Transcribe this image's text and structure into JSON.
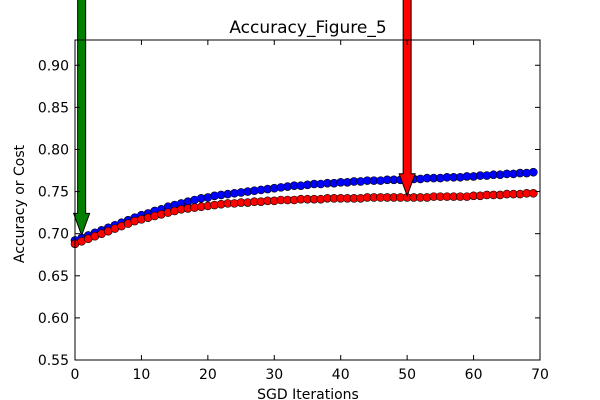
{
  "chart_data": {
    "type": "scatter",
    "title": "Accuracy_Figure_5",
    "xlabel": "SGD Iterations",
    "ylabel": "Accuracy or Cost",
    "xlim": [
      0,
      70
    ],
    "ylim": [
      0.55,
      0.93
    ],
    "xticks": [
      0,
      10,
      20,
      30,
      40,
      50,
      60,
      70
    ],
    "yticks": [
      0.55,
      0.6,
      0.65,
      0.7,
      0.75,
      0.8,
      0.85,
      0.9
    ],
    "xtick_labels": [
      "0",
      "10",
      "20",
      "30",
      "40",
      "50",
      "60",
      "70"
    ],
    "ytick_labels": [
      "0.55",
      "0.60",
      "0.65",
      "0.70",
      "0.75",
      "0.80",
      "0.85",
      "0.90"
    ],
    "grid": false,
    "legend": null,
    "x": [
      0,
      1,
      2,
      3,
      4,
      5,
      6,
      7,
      8,
      9,
      10,
      11,
      12,
      13,
      14,
      15,
      16,
      17,
      18,
      19,
      20,
      21,
      22,
      23,
      24,
      25,
      26,
      27,
      28,
      29,
      30,
      31,
      32,
      33,
      34,
      35,
      36,
      37,
      38,
      39,
      40,
      41,
      42,
      43,
      44,
      45,
      46,
      47,
      48,
      49,
      50,
      51,
      52,
      53,
      54,
      55,
      56,
      57,
      58,
      59,
      60,
      61,
      62,
      63,
      64,
      65,
      66,
      67,
      68,
      69
    ],
    "series": [
      {
        "color": "#0000ff",
        "values": [
          0.692,
          0.695,
          0.698,
          0.701,
          0.704,
          0.707,
          0.71,
          0.713,
          0.716,
          0.719,
          0.722,
          0.724,
          0.727,
          0.729,
          0.732,
          0.734,
          0.736,
          0.738,
          0.74,
          0.742,
          0.743,
          0.745,
          0.746,
          0.747,
          0.748,
          0.749,
          0.75,
          0.751,
          0.752,
          0.753,
          0.754,
          0.755,
          0.756,
          0.757,
          0.757,
          0.758,
          0.759,
          0.759,
          0.76,
          0.76,
          0.761,
          0.761,
          0.762,
          0.762,
          0.763,
          0.763,
          0.763,
          0.764,
          0.764,
          0.764,
          0.765,
          0.765,
          0.765,
          0.766,
          0.766,
          0.766,
          0.767,
          0.767,
          0.767,
          0.768,
          0.768,
          0.769,
          0.769,
          0.77,
          0.77,
          0.771,
          0.771,
          0.772,
          0.772,
          0.773
        ]
      },
      {
        "color": "#ff0000",
        "values": [
          0.688,
          0.691,
          0.694,
          0.697,
          0.7,
          0.703,
          0.706,
          0.709,
          0.712,
          0.715,
          0.717,
          0.719,
          0.721,
          0.723,
          0.725,
          0.727,
          0.729,
          0.73,
          0.731,
          0.732,
          0.733,
          0.734,
          0.735,
          0.736,
          0.736,
          0.737,
          0.737,
          0.738,
          0.738,
          0.739,
          0.739,
          0.74,
          0.74,
          0.74,
          0.741,
          0.741,
          0.741,
          0.741,
          0.742,
          0.742,
          0.742,
          0.742,
          0.742,
          0.742,
          0.743,
          0.743,
          0.743,
          0.743,
          0.743,
          0.743,
          0.743,
          0.743,
          0.743,
          0.743,
          0.744,
          0.744,
          0.744,
          0.744,
          0.744,
          0.744,
          0.745,
          0.745,
          0.746,
          0.746,
          0.746,
          0.747,
          0.747,
          0.747,
          0.748,
          0.748
        ]
      }
    ],
    "annotations": [
      {
        "type": "arrow",
        "color": "#008000",
        "x": 1,
        "y": 0.698
      },
      {
        "type": "arrow",
        "color": "#ff0000",
        "x": 50,
        "y": 0.745
      }
    ]
  }
}
